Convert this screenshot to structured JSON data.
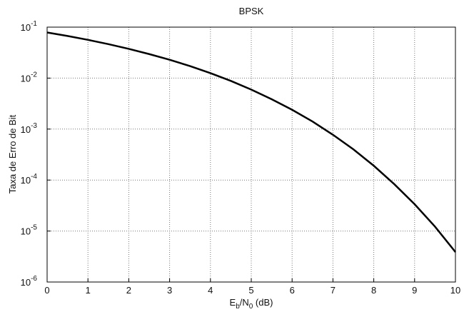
{
  "chart_data": {
    "type": "line",
    "title": "BPSK",
    "xlabel": [
      {
        "text": "E"
      },
      {
        "text": "b",
        "sub": true
      },
      {
        "text": "/N"
      },
      {
        "text": "0",
        "sub": true
      },
      {
        "text": " (dB)"
      }
    ],
    "ylabel": "Taxa de Erro de Bit",
    "x": [
      0,
      0.5,
      1,
      1.5,
      2,
      2.5,
      3,
      3.5,
      4,
      4.5,
      5,
      5.5,
      6,
      6.5,
      7,
      7.5,
      8,
      8.5,
      9,
      9.5,
      10
    ],
    "series": [
      {
        "color": "#000000",
        "values": [
          0.0786,
          0.0671,
          0.0563,
          0.0464,
          0.0375,
          0.0296,
          0.0229,
          0.0172,
          0.0125,
          0.00881,
          0.00595,
          0.00385,
          0.00239,
          0.00141,
          0.000773,
          0.000401,
          0.000191,
          8.34e-05,
          3.36e-05,
          1.22e-05,
          3.87e-06
        ]
      }
    ],
    "xlim": [
      0,
      10
    ],
    "xticks": [
      0,
      1,
      2,
      3,
      4,
      5,
      6,
      7,
      8,
      9,
      10
    ],
    "ylim": [
      1e-06,
      0.1
    ],
    "ylog": true,
    "yticks": [
      {
        "value": 1e-06,
        "label": "10",
        "exponent": "-6"
      },
      {
        "value": 1e-05,
        "label": "10",
        "exponent": "-5"
      },
      {
        "value": 0.0001,
        "label": "10",
        "exponent": "-4"
      },
      {
        "value": 0.001,
        "label": "10",
        "exponent": "-3"
      },
      {
        "value": 0.01,
        "label": "10",
        "exponent": "-2"
      },
      {
        "value": 0.1,
        "label": "10",
        "exponent": "-1"
      }
    ],
    "grid": true
  }
}
